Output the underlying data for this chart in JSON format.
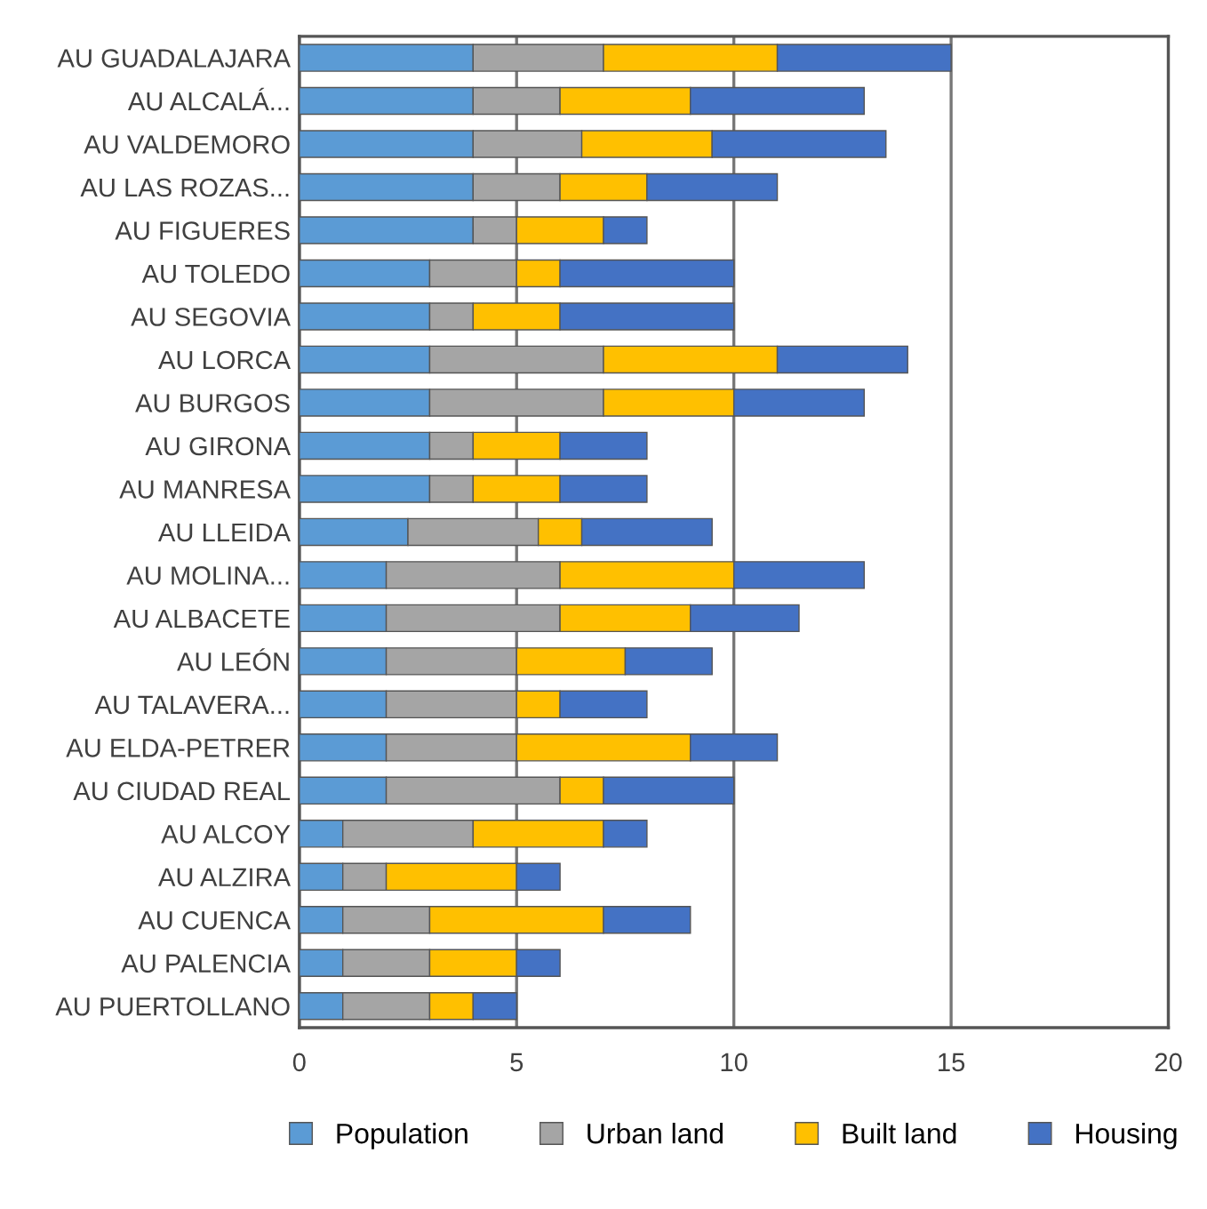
{
  "chart_data": {
    "type": "bar",
    "orientation": "horizontal",
    "stacked": true,
    "categories": [
      "AU GUADALAJARA",
      "AU ALCALÁ...",
      "AU VALDEMORO",
      "AU LAS ROZAS...",
      "AU FIGUERES",
      "AU TOLEDO",
      "AU SEGOVIA",
      "AU LORCA",
      "AU BURGOS",
      "AU GIRONA",
      "AU MANRESA",
      "AU LLEIDA",
      "AU MOLINA...",
      "AU ALBACETE",
      "AU LEÓN",
      "AU TALAVERA...",
      "AU ELDA-PETRER",
      "AU CIUDAD REAL",
      "AU ALCOY",
      "AU ALZIRA",
      "AU CUENCA",
      "AU PALENCIA",
      "AU PUERTOLLANO"
    ],
    "series": [
      {
        "name": "Population",
        "color": "#5b9bd5",
        "values": [
          4,
          4,
          4,
          4,
          4,
          3,
          3,
          3,
          3,
          3,
          3,
          2.5,
          2,
          2,
          2,
          2,
          2,
          2,
          1,
          1,
          1,
          1,
          1
        ]
      },
      {
        "name": "Urban land",
        "color": "#a5a5a5",
        "values": [
          3,
          2,
          2.5,
          2,
          1,
          2,
          1,
          4,
          4,
          1,
          1,
          3,
          4,
          4,
          3,
          3,
          3,
          4,
          3,
          1,
          2,
          2,
          2
        ]
      },
      {
        "name": "Built land",
        "color": "#ffc000",
        "values": [
          4,
          3,
          3,
          2,
          2,
          1,
          2,
          4,
          3,
          2,
          2,
          1,
          4,
          3,
          2.5,
          1,
          4,
          1,
          3,
          3,
          4,
          2,
          1
        ]
      },
      {
        "name": "Housing",
        "color": "#4472c4",
        "values": [
          4,
          4,
          4,
          3,
          1,
          4,
          4,
          3,
          3,
          2,
          2,
          3,
          3,
          2.5,
          2,
          2,
          2,
          3,
          1,
          1,
          2,
          1,
          1
        ]
      }
    ],
    "xlim": [
      0,
      20
    ],
    "xticks": [
      0,
      5,
      10,
      15,
      20
    ],
    "grid": "x",
    "legend": "bottom"
  }
}
